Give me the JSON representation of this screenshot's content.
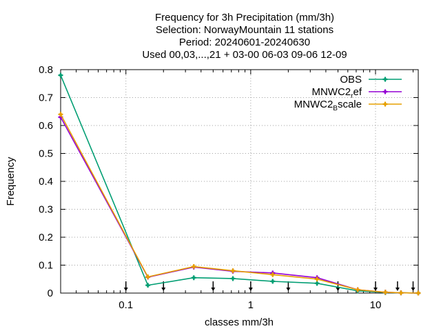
{
  "chart_data": {
    "type": "line",
    "title_lines": [
      "Frequency  for 3h Precipitation (mm/3h)",
      "Selection: NorwayMountain     11 stations",
      "Period: 20240601-20240630",
      "Used 00,03,...,21 + 03-00 06-03 09-06 12-09"
    ],
    "xlabel": "classes mm/3h",
    "ylabel": "Frequency",
    "xscale": "log",
    "xlim": [
      0.03,
      22
    ],
    "ylim": [
      0,
      0.8
    ],
    "x_ticks": [
      0.1,
      1,
      10
    ],
    "x_tick_labels": [
      "0.1",
      "1",
      "10"
    ],
    "y_ticks": [
      0,
      0.1,
      0.2,
      0.3,
      0.4,
      0.5,
      0.6,
      0.7,
      0.8
    ],
    "y_tick_labels": [
      "0",
      "0.1",
      "0.2",
      "0.3",
      "0.4",
      "0.5",
      "0.6",
      "0.7",
      "0.8"
    ],
    "grid": true,
    "legend_position": "top-right",
    "x": [
      0.03,
      0.15,
      0.35,
      0.72,
      1.5,
      3.4,
      7.2,
      12,
      16,
      22
    ],
    "series": [
      {
        "name": "OBS",
        "color": "#009e73",
        "values": [
          0.78,
          0.028,
          0.055,
          0.052,
          0.042,
          0.035,
          0.008,
          0.002,
          0.001,
          0.0
        ]
      },
      {
        "name": "MNWC2",
        "name_sub": "r",
        "name_suffix": "ef",
        "color": "#9400d3",
        "values": [
          0.63,
          0.057,
          0.093,
          0.078,
          0.072,
          0.055,
          0.012,
          0.003,
          0.001,
          0.0
        ]
      },
      {
        "name": "MNWC2",
        "name_sub": "B",
        "name_suffix": "scale",
        "color": "#e69f00",
        "values": [
          0.64,
          0.058,
          0.095,
          0.08,
          0.066,
          0.05,
          0.012,
          0.003,
          0.001,
          0.0
        ]
      }
    ],
    "arrow_markers_x": [
      0.1,
      0.2,
      0.5,
      1,
      2,
      5,
      10,
      15,
      20
    ]
  }
}
